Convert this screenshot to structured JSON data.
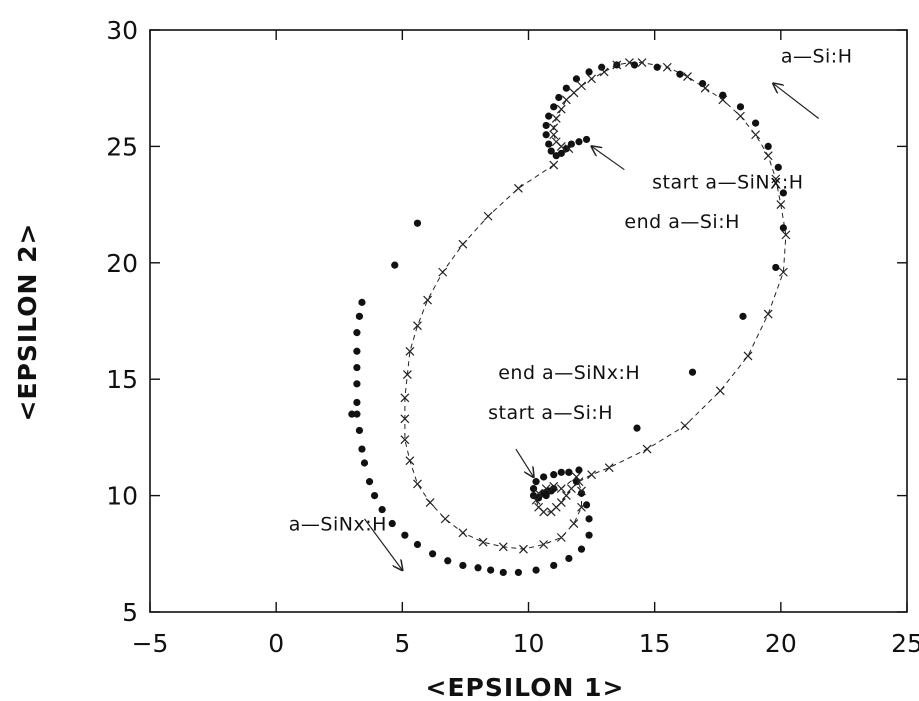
{
  "chart_data": {
    "type": "scatter",
    "xlabel": "<EPSILON 1>",
    "ylabel": "<EPSILON 2>",
    "xlim": [
      -5,
      25
    ],
    "ylim": [
      5,
      30
    ],
    "x_ticks": [
      -5,
      0,
      5,
      10,
      15,
      20,
      25
    ],
    "y_ticks": [
      5,
      10,
      15,
      20,
      25,
      30
    ],
    "grid": false,
    "series": [
      {
        "marker": "dot",
        "color": "#111111",
        "points": [
          [
            12.3,
            25.3
          ],
          [
            12.0,
            25.2
          ],
          [
            11.7,
            25.1
          ],
          [
            11.5,
            24.9
          ],
          [
            11.3,
            24.7
          ],
          [
            11.1,
            24.6
          ],
          [
            10.9,
            24.8
          ],
          [
            10.8,
            25.1
          ],
          [
            10.7,
            25.5
          ],
          [
            10.7,
            25.9
          ],
          [
            10.8,
            26.3
          ],
          [
            11.0,
            26.7
          ],
          [
            11.2,
            27.1
          ],
          [
            11.5,
            27.5
          ],
          [
            11.9,
            27.9
          ],
          [
            12.4,
            28.2
          ],
          [
            12.9,
            28.4
          ],
          [
            13.5,
            28.5
          ],
          [
            14.2,
            28.5
          ],
          [
            15.1,
            28.4
          ],
          [
            16.0,
            28.1
          ],
          [
            16.9,
            27.7
          ],
          [
            17.7,
            27.2
          ],
          [
            18.4,
            26.7
          ],
          [
            19.0,
            26.0
          ],
          [
            19.5,
            25.0
          ],
          [
            19.9,
            24.1
          ],
          [
            20.1,
            23.0
          ],
          [
            20.1,
            21.5
          ],
          [
            19.8,
            19.8
          ],
          [
            18.5,
            17.7
          ],
          [
            16.5,
            15.3
          ],
          [
            14.3,
            12.9
          ],
          [
            12.0,
            11.1
          ],
          [
            11.6,
            11.0
          ],
          [
            11.3,
            11.0
          ],
          [
            11.0,
            10.9
          ],
          [
            10.6,
            10.8
          ],
          [
            10.3,
            10.6
          ],
          [
            10.2,
            10.3
          ],
          [
            10.2,
            10.0
          ],
          [
            10.4,
            9.9
          ],
          [
            10.7,
            10.0
          ],
          [
            10.9,
            10.2
          ],
          [
            11.0,
            10.3
          ],
          [
            10.8,
            10.2
          ],
          [
            10.6,
            10.1
          ],
          [
            11.6,
            11.0
          ],
          [
            11.9,
            10.6
          ],
          [
            12.1,
            10.1
          ],
          [
            12.3,
            9.6
          ],
          [
            12.4,
            9.0
          ],
          [
            12.4,
            8.3
          ],
          [
            12.1,
            7.7
          ],
          [
            11.6,
            7.3
          ],
          [
            11.0,
            7.0
          ],
          [
            10.3,
            6.8
          ],
          [
            9.6,
            6.7
          ],
          [
            9.0,
            6.7
          ],
          [
            8.5,
            6.8
          ],
          [
            8.0,
            6.9
          ],
          [
            7.4,
            7.0
          ],
          [
            6.8,
            7.2
          ],
          [
            6.2,
            7.5
          ],
          [
            5.6,
            7.9
          ],
          [
            5.1,
            8.3
          ],
          [
            4.6,
            8.8
          ],
          [
            4.2,
            9.4
          ],
          [
            3.9,
            10.0
          ],
          [
            3.7,
            10.6
          ],
          [
            3.5,
            11.4
          ],
          [
            3.4,
            12.0
          ],
          [
            3.3,
            12.8
          ],
          [
            3.2,
            13.5
          ],
          [
            3.0,
            13.5
          ],
          [
            3.2,
            14.0
          ],
          [
            3.2,
            14.8
          ],
          [
            3.2,
            15.5
          ],
          [
            3.2,
            16.2
          ],
          [
            3.2,
            17.0
          ],
          [
            3.3,
            17.7
          ],
          [
            3.4,
            18.3
          ],
          [
            4.7,
            19.9
          ],
          [
            5.6,
            21.7
          ]
        ]
      },
      {
        "marker": "cross-dashed",
        "color": "#222222",
        "points": [
          [
            11.6,
            24.9
          ],
          [
            11.3,
            25.0
          ],
          [
            11.1,
            25.2
          ],
          [
            11.0,
            25.5
          ],
          [
            11.0,
            25.8
          ],
          [
            11.1,
            26.2
          ],
          [
            11.3,
            26.6
          ],
          [
            11.5,
            27.0
          ],
          [
            11.8,
            27.3
          ],
          [
            12.1,
            27.6
          ],
          [
            12.5,
            27.9
          ],
          [
            13.0,
            28.2
          ],
          [
            13.5,
            28.5
          ],
          [
            14.0,
            28.6
          ],
          [
            14.5,
            28.6
          ],
          [
            15.5,
            28.4
          ],
          [
            16.3,
            28.0
          ],
          [
            17.0,
            27.5
          ],
          [
            17.7,
            27.0
          ],
          [
            18.4,
            26.3
          ],
          [
            19.0,
            25.5
          ],
          [
            19.5,
            24.6
          ],
          [
            19.8,
            23.6
          ],
          [
            20.0,
            22.5
          ],
          [
            20.2,
            21.2
          ],
          [
            20.1,
            19.6
          ],
          [
            19.5,
            17.8
          ],
          [
            18.7,
            16.0
          ],
          [
            17.6,
            14.5
          ],
          [
            16.2,
            13.0
          ],
          [
            14.7,
            12.0
          ],
          [
            13.2,
            11.2
          ],
          [
            12.5,
            10.9
          ],
          [
            12.0,
            10.6
          ],
          [
            11.7,
            10.3
          ],
          [
            11.5,
            10.0
          ],
          [
            11.3,
            9.7
          ],
          [
            11.1,
            9.5
          ],
          [
            10.9,
            9.3
          ],
          [
            10.6,
            9.3
          ],
          [
            10.4,
            9.5
          ],
          [
            10.3,
            9.8
          ],
          [
            10.4,
            10.1
          ],
          [
            10.7,
            10.3
          ],
          [
            11.0,
            10.4
          ],
          [
            11.3,
            10.3
          ],
          [
            11.9,
            10.8
          ],
          [
            12.1,
            10.2
          ],
          [
            12.1,
            9.5
          ],
          [
            11.8,
            8.8
          ],
          [
            11.3,
            8.2
          ],
          [
            10.6,
            7.9
          ],
          [
            9.8,
            7.7
          ],
          [
            9.0,
            7.8
          ],
          [
            8.2,
            8.0
          ],
          [
            7.4,
            8.4
          ],
          [
            6.7,
            9.0
          ],
          [
            6.1,
            9.7
          ],
          [
            5.6,
            10.5
          ],
          [
            5.3,
            11.5
          ],
          [
            5.1,
            12.4
          ],
          [
            5.1,
            13.3
          ],
          [
            5.1,
            14.2
          ],
          [
            5.2,
            15.2
          ],
          [
            5.3,
            16.2
          ],
          [
            5.6,
            17.3
          ],
          [
            6.0,
            18.4
          ],
          [
            6.6,
            19.6
          ],
          [
            7.4,
            20.8
          ],
          [
            8.4,
            22.0
          ],
          [
            9.6,
            23.2
          ],
          [
            11.0,
            24.2
          ]
        ]
      }
    ],
    "annotations": [
      {
        "text": "a—Si:H",
        "x": 20.0,
        "y": 28.6,
        "arrow_from": [
          21.5,
          26.2
        ],
        "arrow_to": [
          19.7,
          27.7
        ]
      },
      {
        "text": "start  a—SiNx:H",
        "x": 14.9,
        "y": 23.2,
        "arrow_from": [
          13.8,
          24.0
        ],
        "arrow_to": [
          12.5,
          25.0
        ]
      },
      {
        "text": "end  a—Si:H",
        "x": 13.8,
        "y": 21.5
      },
      {
        "text": "end  a—SiNx:H",
        "x": 8.8,
        "y": 15.0
      },
      {
        "text": "start  a—Si:H",
        "x": 8.4,
        "y": 13.3,
        "arrow_from": [
          9.5,
          12.0
        ],
        "arrow_to": [
          10.2,
          10.8
        ]
      },
      {
        "text": "a—SiNx:H",
        "x": 0.5,
        "y": 8.5,
        "arrow_from": [
          3.5,
          9.0
        ],
        "arrow_to": [
          5.0,
          6.8
        ]
      }
    ]
  }
}
